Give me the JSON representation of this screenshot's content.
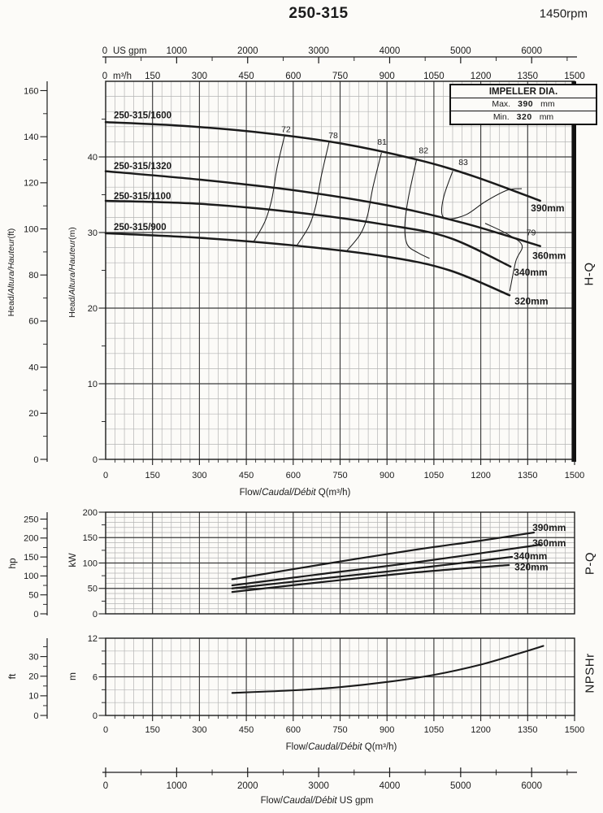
{
  "title": "250-315",
  "rpm": "1450rpm",
  "impeller_box": {
    "header": "IMPELLER DIA.",
    "max_label": "Max.",
    "max_value": "390",
    "max_unit": "mm",
    "min_label": "Min.",
    "min_value": "320",
    "min_unit": "mm"
  },
  "labels": {
    "flow_en": "Flow/",
    "flow_intl": "Caudal/Débit",
    "flow_unit_q": "Q(m³/h)",
    "flow_unit_gpm": "US gpm",
    "head_en": "Head/",
    "head_intl": "Altura/Hauteur",
    "head_ft": "(ft)",
    "head_m": "(m)",
    "hp": "hp",
    "kw": "kW",
    "ft": "ft",
    "m": "m",
    "usgpm": "US gpm",
    "m3h": "m³/h",
    "hq": "H-Q",
    "pq": "P-Q",
    "npshr": "NPSHr"
  },
  "top_axis": {
    "gpm_ticks": [
      0,
      1000,
      2000,
      3000,
      4000,
      5000,
      6000
    ],
    "m3h_ticks": [
      0,
      150,
      300,
      450,
      600,
      750,
      900,
      1050,
      1200,
      1350,
      1500
    ]
  },
  "bottom_axis": {
    "gpm_ticks": [
      0,
      1000,
      2000,
      3000,
      4000,
      5000,
      6000
    ]
  },
  "chart_data": [
    {
      "id": "hq",
      "type": "line",
      "title": "H-Q head vs flow curves",
      "xlabel": "Flow/Caudal/Débit Q(m³/h)",
      "ylabel_m": "Head/Altura/Hauteur(m)",
      "ylabel_ft": "Head/Altura/Hauteur(ft)",
      "x_range": [
        0,
        1500
      ],
      "y_range_m": [
        0,
        50
      ],
      "x_ticks": [
        0,
        150,
        300,
        450,
        600,
        750,
        900,
        1050,
        1200,
        1350,
        1500
      ],
      "y_ticks_m": [
        0,
        10,
        20,
        30,
        40
      ],
      "y_ticks_ft": [
        0,
        20,
        40,
        60,
        80,
        100,
        120,
        140,
        160
      ],
      "series": [
        {
          "name": "250-315/1600",
          "dia": "390mm",
          "points": [
            [
              0,
              44.6
            ],
            [
              250,
              44.1
            ],
            [
              500,
              43.2
            ],
            [
              750,
              41.8
            ],
            [
              1000,
              39.6
            ],
            [
              1180,
              37.4
            ],
            [
              1390,
              34.2
            ]
          ],
          "name_label_at": [
            26,
            45.1
          ],
          "dia_label_at": [
            1360,
            32.8
          ]
        },
        {
          "name": "250-315/1320",
          "dia": "360mm",
          "points": [
            [
              0,
              38.1
            ],
            [
              300,
              37.0
            ],
            [
              600,
              35.6
            ],
            [
              900,
              33.6
            ],
            [
              1150,
              31.2
            ],
            [
              1390,
              28.2
            ]
          ],
          "name_label_at": [
            26,
            38.4
          ],
          "dia_label_at": [
            1365,
            26.5
          ]
        },
        {
          "name": "250-315/1100",
          "dia": "340mm",
          "points": [
            [
              0,
              34.2
            ],
            [
              300,
              33.8
            ],
            [
              600,
              32.7
            ],
            [
              900,
              31.0
            ],
            [
              1100,
              29.3
            ],
            [
              1295,
              25.5
            ]
          ],
          "name_label_at": [
            26,
            34.4
          ],
          "dia_label_at": [
            1306,
            24.3
          ]
        },
        {
          "name": "250-315/900",
          "dia": "320mm",
          "points": [
            [
              0,
              29.9
            ],
            [
              300,
              29.3
            ],
            [
              600,
              28.3
            ],
            [
              900,
              26.8
            ],
            [
              1100,
              25.0
            ],
            [
              1292,
              21.7
            ]
          ],
          "name_label_at": [
            26,
            30.3
          ],
          "dia_label_at": [
            1308,
            20.5
          ]
        }
      ],
      "efficiency_lines": [
        {
          "label": "72",
          "label_at": [
            577,
            43.3
          ],
          "points": [
            [
              573,
              42.9
            ],
            [
              548,
              38.5
            ],
            [
              532,
              34.5
            ],
            [
              510,
              31.5
            ],
            [
              475,
              28.9
            ]
          ]
        },
        {
          "label": "78",
          "label_at": [
            728,
            42.5
          ],
          "points": [
            [
              715,
              42.0
            ],
            [
              690,
              37.5
            ],
            [
              672,
              33.5
            ],
            [
              650,
              30.8
            ],
            [
              612,
              28.3
            ]
          ]
        },
        {
          "label": "81",
          "label_at": [
            884,
            41.6
          ],
          "points": [
            [
              882,
              40.5
            ],
            [
              855,
              36.0
            ],
            [
              838,
              32.3
            ],
            [
              815,
              29.8
            ],
            [
              770,
              27.5
            ]
          ]
        },
        {
          "label": "82",
          "label_at": [
            1017,
            40.5
          ],
          "points": [
            [
              995,
              39.7
            ],
            [
              968,
              34.5
            ],
            [
              957,
              30.8
            ],
            [
              965,
              28.4
            ],
            [
              1000,
              27.3
            ],
            [
              1035,
              26.6
            ]
          ]
        },
        {
          "label": "83",
          "label_at": [
            1144,
            38.9
          ],
          "points": [
            [
              1110,
              38.1
            ],
            [
              1082,
              34.8
            ],
            [
              1076,
              32.4
            ],
            [
              1100,
              31.8
            ],
            [
              1155,
              32.4
            ],
            [
              1215,
              34.1
            ],
            [
              1285,
              35.6
            ],
            [
              1330,
              35.8
            ]
          ]
        },
        {
          "label": "79",
          "label_at": [
            1361,
            29.6
          ],
          "points": [
            [
              1215,
              31.2
            ],
            [
              1285,
              29.8
            ],
            [
              1332,
              28.3
            ],
            [
              1312,
              26.2
            ],
            [
              1293,
              22.3
            ]
          ]
        }
      ]
    },
    {
      "id": "pq",
      "type": "line",
      "title": "P-Q power vs flow curves",
      "y_range_kw": [
        0,
        200
      ],
      "y_ticks_kw": [
        0,
        50,
        100,
        150,
        200
      ],
      "y_ticks_hp": [
        0,
        50,
        100,
        150,
        200,
        250
      ],
      "series": [
        {
          "dia": "390mm",
          "points": [
            [
              405,
              68
            ],
            [
              700,
              98
            ],
            [
              1000,
              127
            ],
            [
              1200,
              144
            ],
            [
              1370,
              160
            ]
          ],
          "dia_label_at": [
            1365,
            163
          ]
        },
        {
          "dia": "360mm",
          "points": [
            [
              405,
              56
            ],
            [
              700,
              79
            ],
            [
              1000,
              102
            ],
            [
              1390,
              136
            ]
          ],
          "dia_label_at": [
            1365,
            133
          ]
        },
        {
          "dia": "340mm",
          "points": [
            [
              405,
              50
            ],
            [
              700,
              70
            ],
            [
              1000,
              90
            ],
            [
              1300,
              112
            ]
          ],
          "dia_label_at": [
            1305,
            107
          ]
        },
        {
          "dia": "320mm",
          "points": [
            [
              405,
              43
            ],
            [
              700,
              63
            ],
            [
              1000,
              82
            ],
            [
              1290,
              96
            ]
          ],
          "dia_label_at": [
            1308,
            86
          ]
        }
      ]
    },
    {
      "id": "npshr",
      "type": "line",
      "title": "NPSHr vs flow curve",
      "xlabel": "Flow/Caudal/Débit Q(m³/h)",
      "y_range_m": [
        0,
        12
      ],
      "x_ticks": [
        0,
        150,
        300,
        450,
        600,
        750,
        900,
        1050,
        1200,
        1350,
        1500
      ],
      "y_ticks_m": [
        0,
        6,
        12
      ],
      "y_ticks_ft": [
        0,
        10,
        20,
        30
      ],
      "series": [
        {
          "name": "NPSHr",
          "points": [
            [
              405,
              3.5
            ],
            [
              600,
              3.9
            ],
            [
              750,
              4.4
            ],
            [
              900,
              5.2
            ],
            [
              1050,
              6.3
            ],
            [
              1200,
              7.9
            ],
            [
              1320,
              9.6
            ],
            [
              1400,
              10.8
            ]
          ]
        }
      ]
    }
  ]
}
